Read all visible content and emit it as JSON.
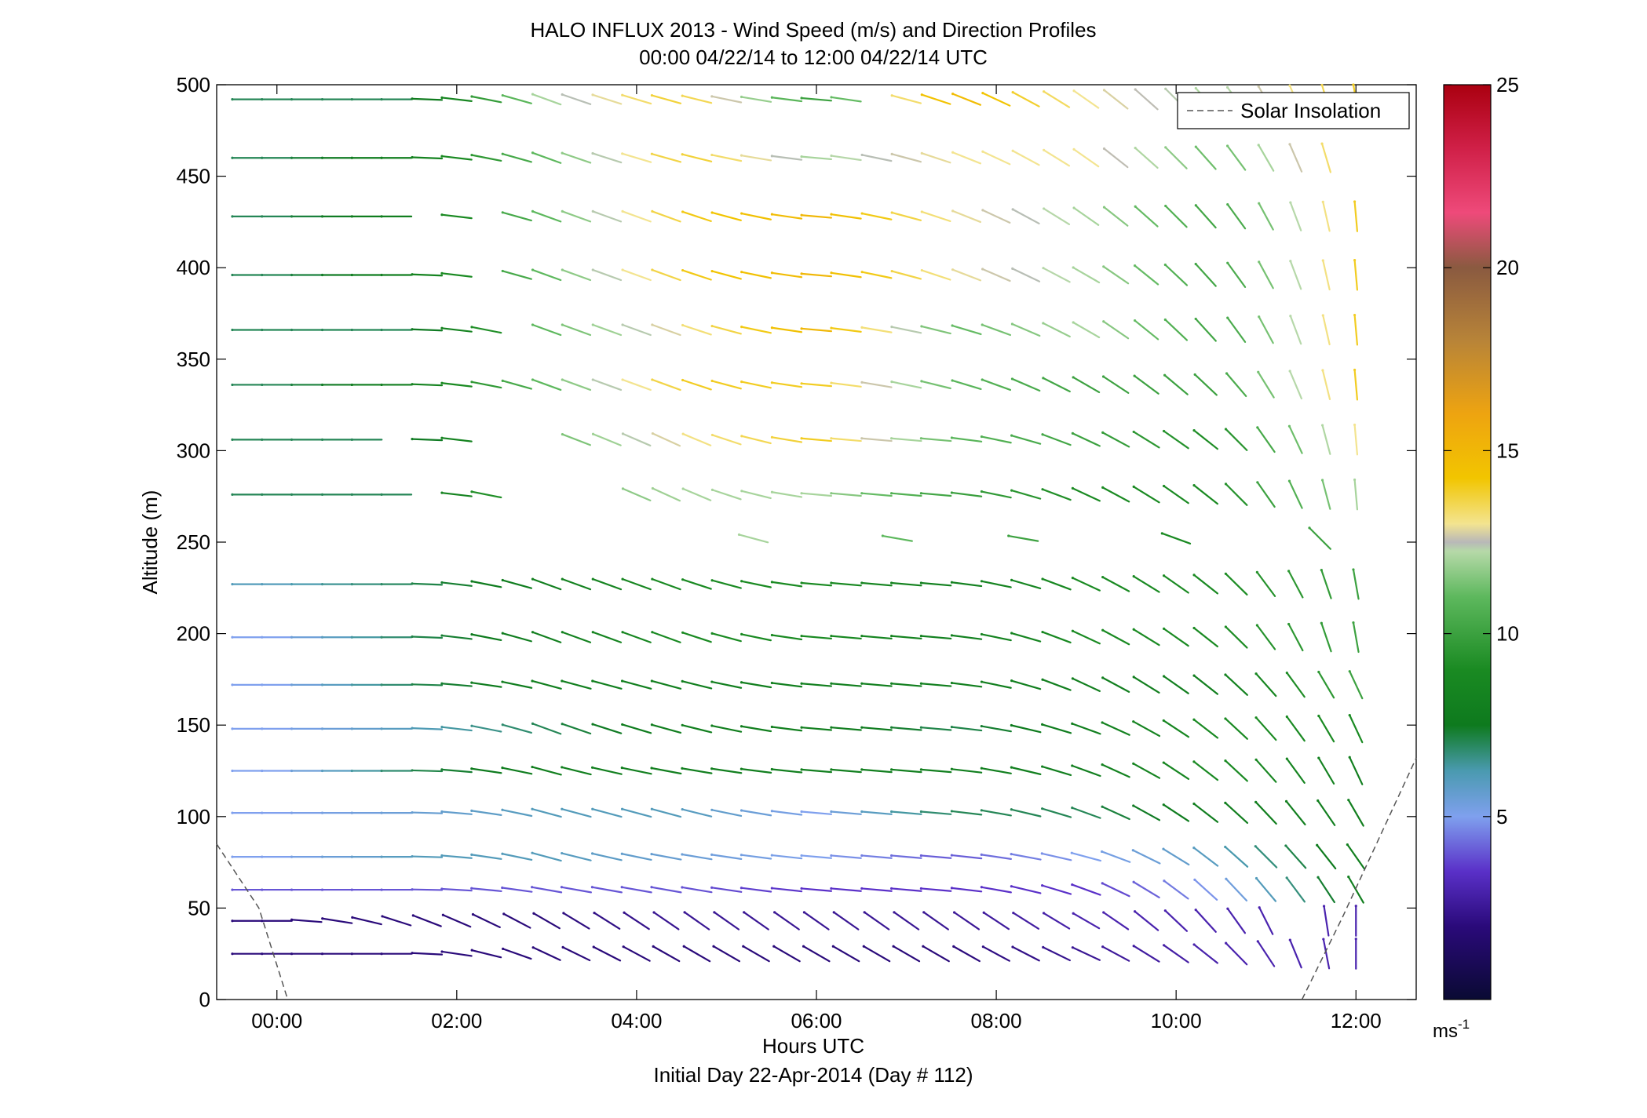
{
  "chart_data": {
    "type": "wind-barb-profile",
    "title": "HALO INFLUX 2013 - Wind Speed (m/s) and Direction Profiles",
    "subtitle": "00:00 04/22/14 to 12:00 04/22/14  UTC",
    "xlabel": "Hours UTC",
    "footer": "Initial Day 22-Apr-2014 (Day # 112)",
    "ylabel": "Altitude (m)",
    "xlim": [
      -0.67,
      12.67
    ],
    "ylim": [
      0,
      500
    ],
    "x_ticks": [
      0,
      2,
      4,
      6,
      8,
      10,
      12
    ],
    "x_tick_labels": [
      "00:00",
      "02:00",
      "04:00",
      "06:00",
      "08:00",
      "10:00",
      "12:00"
    ],
    "y_ticks": [
      0,
      50,
      100,
      150,
      200,
      250,
      300,
      350,
      400,
      450,
      500
    ],
    "y_tick_labels": [
      "0",
      "50",
      "100",
      "150",
      "200",
      "250",
      "300",
      "350",
      "400",
      "450",
      "500"
    ],
    "legend": {
      "label": "Solar Insolation",
      "position": "top-right"
    },
    "colorbar": {
      "range": [
        0,
        25
      ],
      "ticks": [
        5,
        10,
        15,
        20,
        25
      ],
      "tick_labels": [
        "5",
        "10",
        "15",
        "20",
        "25"
      ],
      "unit_label": "ms",
      "unit_exponent": "-1"
    },
    "solar_insolation_curves": [
      {
        "points": [
          [
            -0.67,
            85
          ],
          [
            -0.2,
            50
          ],
          [
            0.12,
            0
          ]
        ]
      },
      {
        "points": [
          [
            11.4,
            0
          ],
          [
            11.85,
            45
          ],
          [
            12.67,
            132
          ]
        ]
      }
    ],
    "altitudes": [
      25,
      43,
      60,
      78,
      102,
      125,
      148,
      172,
      198,
      227,
      252,
      276,
      306,
      336,
      366,
      396,
      428,
      460,
      492
    ],
    "wind_keyframes": [
      {
        "altitude": 25,
        "speeds": [
          2,
          2,
          2,
          2,
          2,
          2,
          2.5,
          3,
          3
        ],
        "directions": [
          270,
          270,
          295,
          300,
          300,
          300,
          295,
          310,
          360
        ]
      },
      {
        "altitude": 43,
        "speeds": [
          2,
          2,
          2,
          2.5,
          2.5,
          2.5,
          3,
          3,
          3
        ],
        "directions": [
          270,
          290,
          300,
          305,
          305,
          305,
          300,
          320,
          360
        ]
      },
      {
        "altitude": 60,
        "speeds": [
          4,
          4,
          4,
          4,
          3.5,
          3.5,
          3.5,
          5,
          8
        ],
        "directions": [
          270,
          270,
          280,
          280,
          275,
          275,
          290,
          315,
          330
        ]
      },
      {
        "altitude": 78,
        "speeds": [
          5,
          6,
          6,
          5.5,
          5,
          4,
          5,
          6,
          8
        ],
        "directions": [
          270,
          270,
          285,
          280,
          275,
          275,
          285,
          310,
          325
        ]
      },
      {
        "altitude": 102,
        "speeds": [
          5,
          5.5,
          6,
          6,
          5,
          7,
          7,
          8,
          8
        ],
        "directions": [
          270,
          270,
          285,
          285,
          275,
          275,
          290,
          310,
          330
        ]
      },
      {
        "altitude": 125,
        "speeds": [
          5,
          7,
          8,
          8,
          8,
          8,
          8,
          9,
          8
        ],
        "directions": [
          270,
          270,
          285,
          280,
          275,
          275,
          290,
          310,
          335
        ]
      },
      {
        "altitude": 148,
        "speeds": [
          5,
          6,
          7,
          8,
          8,
          7,
          8,
          9,
          9
        ],
        "directions": [
          270,
          270,
          290,
          285,
          275,
          275,
          290,
          310,
          335
        ]
      },
      {
        "altitude": 172,
        "speeds": [
          5,
          7,
          8,
          8,
          8,
          8,
          8,
          8,
          10
        ],
        "directions": [
          270,
          270,
          285,
          285,
          275,
          275,
          295,
          310,
          335
        ]
      },
      {
        "altitude": 198,
        "speeds": [
          5,
          7,
          8,
          9,
          9,
          8,
          9,
          9,
          10
        ],
        "directions": [
          270,
          270,
          290,
          290,
          275,
          275,
          295,
          310,
          350
        ]
      },
      {
        "altitude": 227,
        "speeds": [
          6,
          7,
          8,
          9,
          9,
          8,
          9,
          9,
          10
        ],
        "directions": [
          270,
          270,
          290,
          290,
          275,
          275,
          295,
          310,
          350
        ]
      },
      {
        "altitude": 252,
        "speeds": [
          12,
          11,
          10,
          9,
          10
        ],
        "directions": [
          285,
          280,
          280,
          290,
          315
        ],
        "times": [
          5.3,
          6.9,
          8.3,
          10.0,
          11.6
        ]
      },
      {
        "altitude": 276,
        "speeds": [
          7,
          7,
          11,
          12,
          12,
          10,
          9,
          9,
          12
        ],
        "directions": [
          270,
          270,
          290,
          295,
          275,
          275,
          295,
          310,
          355
        ]
      },
      {
        "altitude": 306,
        "speeds": [
          7,
          7,
          11,
          13,
          14,
          11,
          10,
          9,
          13
        ],
        "directions": [
          270,
          270,
          290,
          295,
          275,
          275,
          295,
          310,
          355
        ]
      },
      {
        "altitude": 336,
        "speeds": [
          7,
          8,
          11,
          14,
          14,
          11,
          10,
          10,
          14
        ],
        "directions": [
          270,
          270,
          290,
          290,
          275,
          285,
          300,
          315,
          355
        ]
      },
      {
        "altitude": 366,
        "speeds": [
          7,
          7,
          11,
          13,
          15,
          11,
          12,
          10,
          14
        ],
        "directions": [
          270,
          270,
          290,
          290,
          275,
          285,
          300,
          320,
          355
        ]
      },
      {
        "altitude": 396,
        "speeds": [
          7,
          8,
          11,
          14,
          15,
          13,
          12,
          10,
          14
        ],
        "directions": [
          270,
          270,
          290,
          290,
          275,
          290,
          300,
          320,
          355
        ]
      },
      {
        "altitude": 428,
        "speeds": [
          7,
          8,
          11,
          14,
          15,
          13,
          12,
          10,
          14
        ],
        "directions": [
          270,
          270,
          290,
          290,
          275,
          290,
          305,
          320,
          355
        ]
      },
      {
        "altitude": 460,
        "speeds": [
          7,
          8,
          11,
          14,
          12,
          13,
          13,
          11,
          14
        ],
        "directions": [
          270,
          270,
          290,
          285,
          275,
          290,
          305,
          320,
          350
        ]
      },
      {
        "altitude": 492,
        "speeds": [
          7,
          7,
          12,
          14,
          10,
          15,
          13,
          12,
          14
        ],
        "directions": [
          270,
          270,
          290,
          285,
          275,
          290,
          305,
          320,
          350
        ]
      }
    ],
    "keyframe_times": [
      0,
      1.5,
      3,
      4.5,
      6,
      7.5,
      9,
      10.5,
      12
    ],
    "observation_times": [
      -0.33,
      0,
      0.33,
      0.67,
      1,
      1.33,
      1.67,
      2,
      2.33,
      2.67,
      3,
      3.33,
      3.67,
      4,
      4.33,
      4.67,
      5,
      5.33,
      5.67,
      6,
      6.33,
      6.67,
      7,
      7.33,
      7.67,
      8,
      8.33,
      8.67,
      9,
      9.33,
      9.67,
      10,
      10.33,
      10.67,
      11,
      11.33,
      11.67,
      12
    ],
    "missing_observations": [
      [
        43,
        11.33
      ],
      [
        366,
        2.67
      ],
      [
        396,
        2.33
      ],
      [
        428,
        2.33
      ],
      [
        306,
        1.33
      ],
      [
        306,
        2.33
      ],
      [
        306,
        2.67
      ],
      [
        306,
        3
      ],
      [
        276,
        1.67
      ],
      [
        276,
        2.67
      ],
      [
        276,
        3
      ],
      [
        276,
        3.33
      ],
      [
        276,
        3.67
      ],
      [
        428,
        1.67
      ],
      [
        492,
        6.67
      ],
      [
        460,
        12
      ],
      [
        428,
        12.33
      ]
    ]
  }
}
